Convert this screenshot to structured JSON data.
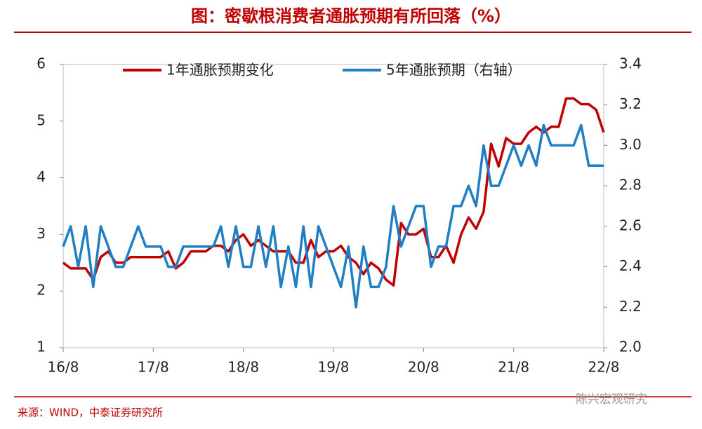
{
  "chart_data": {
    "type": "line",
    "title": "图：密歇根消费者通胀预期有所回落（%）",
    "source": "来源：WIND，中泰证券研究所",
    "watermark": "陈兴宏观研究",
    "categories": [
      "16/8",
      null,
      null,
      null,
      null,
      null,
      null,
      null,
      null,
      null,
      null,
      null,
      "17/8",
      null,
      null,
      null,
      null,
      null,
      null,
      null,
      null,
      null,
      null,
      null,
      "18/8",
      null,
      null,
      null,
      null,
      null,
      null,
      null,
      null,
      null,
      null,
      null,
      "19/8",
      null,
      null,
      null,
      null,
      null,
      null,
      null,
      null,
      null,
      null,
      null,
      "20/8",
      null,
      null,
      null,
      null,
      null,
      null,
      null,
      null,
      null,
      null,
      null,
      "21/8",
      null,
      null,
      null,
      null,
      null,
      null,
      null,
      null,
      null,
      null,
      null,
      "22/8"
    ],
    "ylim": [
      1,
      6
    ],
    "yticks": [
      1,
      2,
      3,
      4,
      5,
      6
    ],
    "y2lim": [
      2.0,
      3.4
    ],
    "y2ticks": [
      {
        "value": 2.0,
        "label": "2.0"
      },
      2.2,
      2.4,
      2.6,
      2.8,
      {
        "value": 3.0,
        "label": "3.0"
      },
      3.2,
      3.4
    ],
    "legend": "top",
    "series": [
      {
        "name": "1年通胀预期变化",
        "color": "#c00000",
        "values": [
          2.5,
          2.4,
          2.4,
          2.4,
          2.2,
          2.6,
          2.7,
          2.5,
          2.5,
          2.6,
          2.6,
          2.6,
          2.6,
          2.6,
          2.7,
          2.4,
          2.5,
          2.7,
          2.7,
          2.7,
          2.8,
          2.8,
          2.7,
          2.9,
          3.0,
          2.8,
          2.9,
          2.8,
          2.7,
          2.7,
          2.7,
          2.5,
          2.5,
          2.9,
          2.6,
          2.7,
          2.7,
          2.8,
          2.6,
          2.5,
          2.3,
          2.5,
          2.4,
          2.2,
          2.1,
          3.2,
          3.0,
          3.0,
          3.1,
          2.6,
          2.6,
          2.8,
          2.5,
          3.0,
          3.3,
          3.1,
          3.4,
          4.6,
          4.2,
          4.7,
          4.6,
          4.6,
          4.8,
          4.9,
          4.8,
          4.9,
          4.9,
          5.4,
          5.4,
          5.3,
          5.3,
          5.2,
          4.8
        ]
      },
      {
        "name": "5年通胀预期（右轴）",
        "color": "#1f7ec4",
        "axis": "y2",
        "values": [
          2.5,
          2.6,
          2.4,
          2.6,
          2.3,
          2.6,
          2.5,
          2.4,
          2.4,
          2.5,
          2.6,
          2.5,
          2.5,
          2.5,
          2.4,
          2.4,
          2.5,
          2.5,
          2.5,
          2.5,
          2.5,
          2.6,
          2.4,
          2.6,
          2.4,
          2.4,
          2.6,
          2.4,
          2.6,
          2.3,
          2.5,
          2.3,
          2.6,
          2.3,
          2.6,
          2.5,
          2.4,
          2.3,
          2.5,
          2.2,
          2.5,
          2.3,
          2.3,
          2.4,
          2.7,
          2.5,
          2.6,
          2.7,
          2.7,
          2.4,
          2.5,
          2.5,
          2.7,
          2.7,
          2.8,
          2.7,
          3.0,
          2.8,
          2.8,
          2.9,
          3.0,
          2.9,
          3.0,
          2.9,
          3.1,
          3.0,
          3.0,
          3.0,
          3.0,
          3.1,
          2.9,
          2.9,
          2.9
        ]
      }
    ]
  }
}
